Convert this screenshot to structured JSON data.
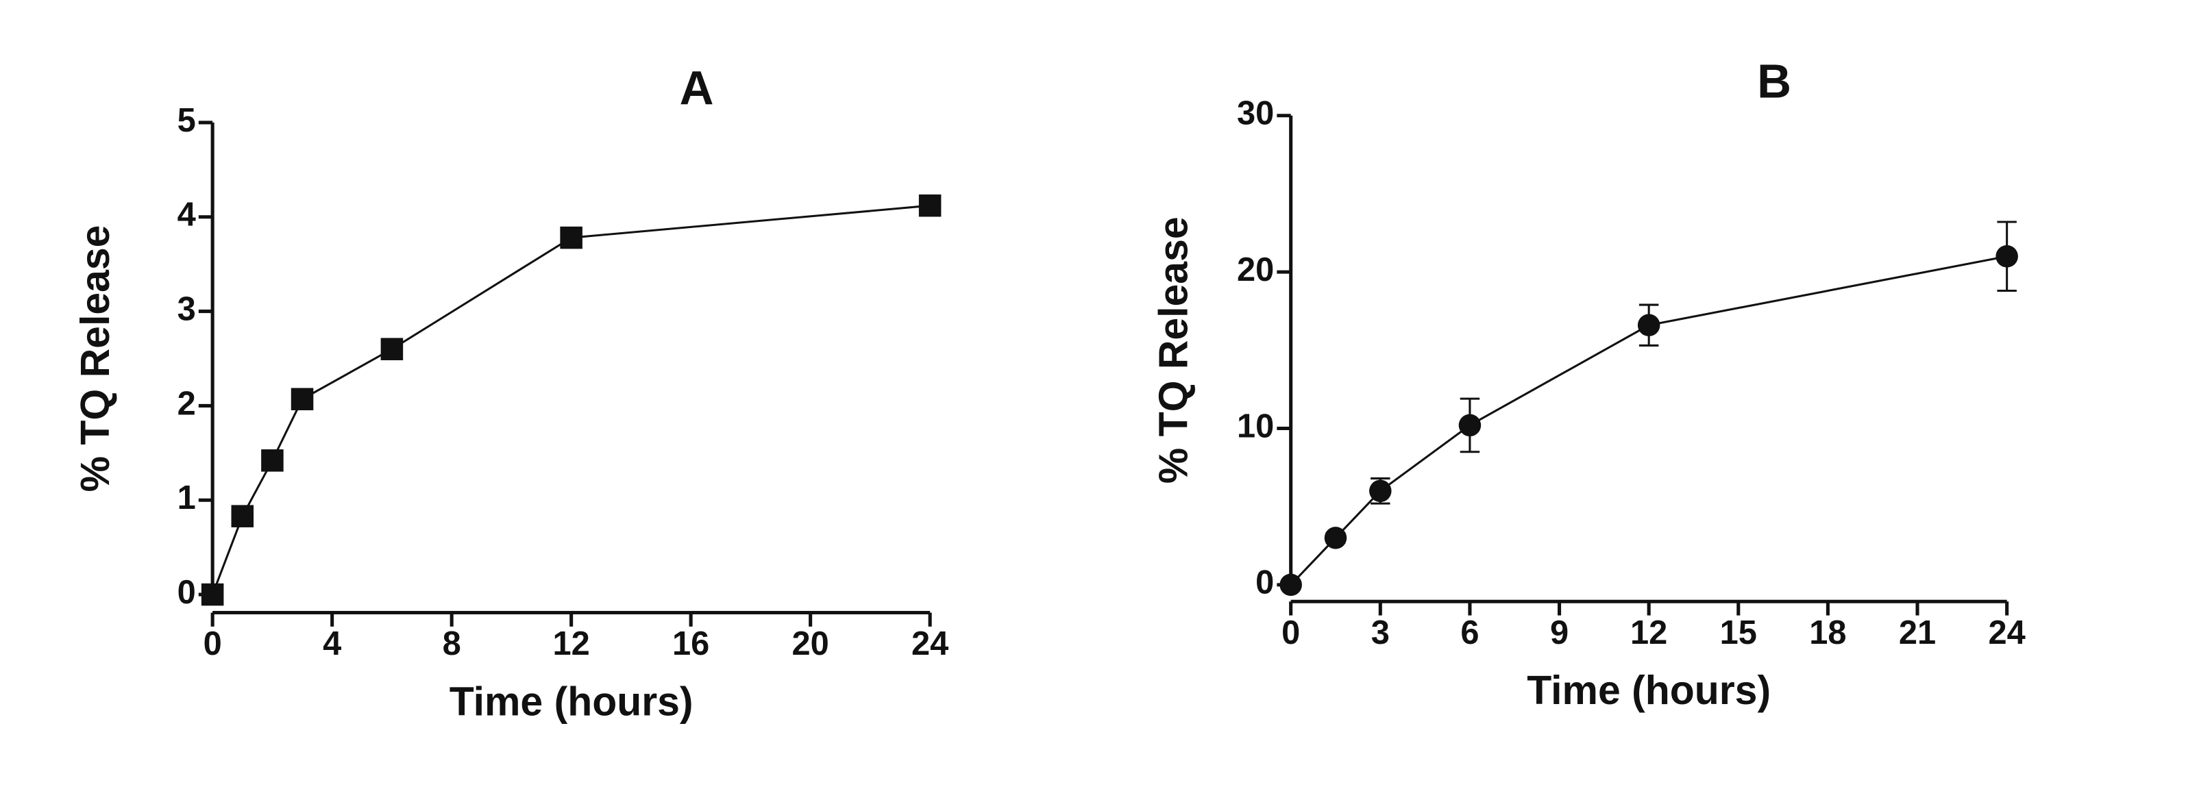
{
  "chart_data": [
    {
      "type": "line",
      "title": "A",
      "xlabel": "Time (hours)",
      "ylabel": "% TQ Release",
      "x": [
        0,
        1,
        2,
        3,
        6,
        12,
        24
      ],
      "values": [
        0,
        0.83,
        1.42,
        2.07,
        2.6,
        3.78,
        4.12
      ],
      "marker": "square",
      "color": "#111111",
      "xlim": [
        0,
        24
      ],
      "xticks": [
        0,
        4,
        8,
        12,
        16,
        20,
        24
      ],
      "ylim": [
        0,
        5
      ],
      "yticks": [
        0,
        1,
        2,
        3,
        4,
        5
      ]
    },
    {
      "type": "line",
      "title": "B",
      "xlabel": "Time (hours)",
      "ylabel": "% TQ Release",
      "x": [
        0,
        1.5,
        3,
        6,
        12,
        24
      ],
      "values": [
        0,
        3.0,
        6.0,
        10.2,
        16.6,
        21.0
      ],
      "errors": [
        0,
        0.3,
        0.8,
        1.7,
        1.3,
        2.2
      ],
      "marker": "circle",
      "color": "#111111",
      "xlim": [
        0,
        24
      ],
      "xticks": [
        0,
        3,
        6,
        9,
        12,
        15,
        18,
        21,
        24
      ],
      "ylim": [
        0,
        30
      ],
      "yticks": [
        0,
        10,
        20,
        30
      ]
    }
  ]
}
